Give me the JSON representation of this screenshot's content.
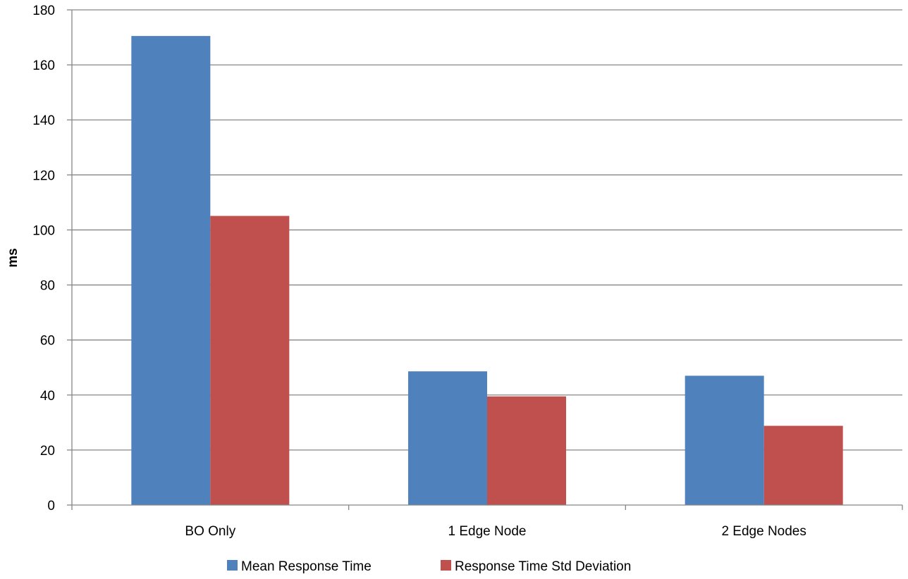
{
  "chart_data": {
    "type": "bar",
    "title": "",
    "xlabel": "",
    "ylabel": "ms",
    "categories": [
      "BO Only",
      "1 Edge Node",
      "2 Edge Nodes"
    ],
    "series": [
      {
        "name": "Mean Response Time",
        "values": [
          170.5,
          48.6,
          47.0
        ],
        "color": "#4F81BD"
      },
      {
        "name": "Response Time Std Deviation",
        "values": [
          105.1,
          39.5,
          28.8
        ],
        "color": "#C0504D"
      }
    ],
    "ylim": [
      0,
      180
    ],
    "yticks": [
      0,
      20,
      40,
      60,
      80,
      100,
      120,
      140,
      160,
      180
    ],
    "grid": true,
    "legend_position": "bottom"
  }
}
